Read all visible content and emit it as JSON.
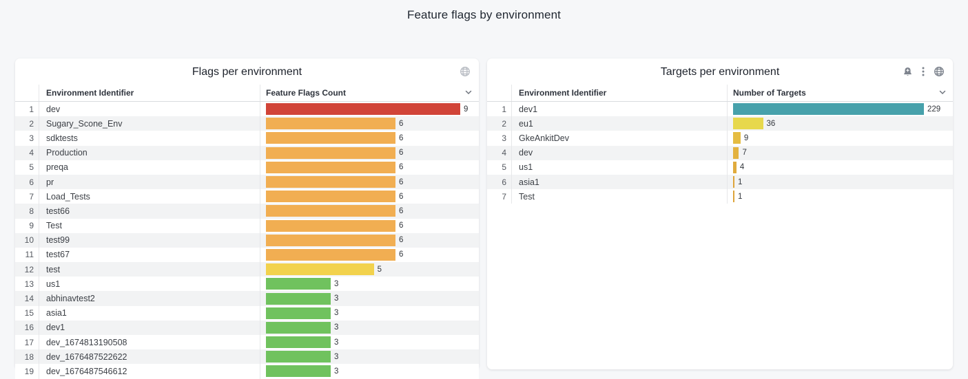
{
  "page": {
    "title": "Feature flags by environment"
  },
  "panels": [
    {
      "title": "Flags per environment",
      "icons": [
        "globe-icon"
      ],
      "columns": {
        "env": "Environment Identifier",
        "value": "Feature Flags Count"
      },
      "max": 9,
      "rows": [
        {
          "index": 1,
          "env": "dev",
          "value": 9,
          "color": "#d14438"
        },
        {
          "index": 2,
          "env": "Sugary_Scone_Env",
          "value": 6,
          "color": "#f1ae52"
        },
        {
          "index": 3,
          "env": "sdktests",
          "value": 6,
          "color": "#f1ae52"
        },
        {
          "index": 4,
          "env": "Production",
          "value": 6,
          "color": "#f1ae52"
        },
        {
          "index": 5,
          "env": "preqa",
          "value": 6,
          "color": "#f1ae52"
        },
        {
          "index": 6,
          "env": "pr",
          "value": 6,
          "color": "#f1ae52"
        },
        {
          "index": 7,
          "env": "Load_Tests",
          "value": 6,
          "color": "#f1ae52"
        },
        {
          "index": 8,
          "env": "test66",
          "value": 6,
          "color": "#f1ae52"
        },
        {
          "index": 9,
          "env": "Test",
          "value": 6,
          "color": "#f1ae52"
        },
        {
          "index": 10,
          "env": "test99",
          "value": 6,
          "color": "#f1ae52"
        },
        {
          "index": 11,
          "env": "test67",
          "value": 6,
          "color": "#f1ae52"
        },
        {
          "index": 12,
          "env": "test",
          "value": 5,
          "color": "#f2d24d"
        },
        {
          "index": 13,
          "env": "us1",
          "value": 3,
          "color": "#70c25e"
        },
        {
          "index": 14,
          "env": "abhinavtest2",
          "value": 3,
          "color": "#70c25e"
        },
        {
          "index": 15,
          "env": "asia1",
          "value": 3,
          "color": "#70c25e"
        },
        {
          "index": 16,
          "env": "dev1",
          "value": 3,
          "color": "#70c25e"
        },
        {
          "index": 17,
          "env": "dev_1674813190508",
          "value": 3,
          "color": "#70c25e"
        },
        {
          "index": 18,
          "env": "dev_1676487522622",
          "value": 3,
          "color": "#70c25e"
        },
        {
          "index": 19,
          "env": "dev_1676487546612",
          "value": 3,
          "color": "#70c25e"
        }
      ]
    },
    {
      "title": "Targets per environment",
      "icons": [
        "bell-plus-icon",
        "kebab-menu-icon",
        "globe-icon"
      ],
      "columns": {
        "env": "Environment Identifier",
        "value": "Number of Targets"
      },
      "max": 229,
      "rows": [
        {
          "index": 1,
          "env": "dev1",
          "value": 229,
          "color": "#47a1ab"
        },
        {
          "index": 2,
          "env": "eu1",
          "value": 36,
          "color": "#e7d84c"
        },
        {
          "index": 3,
          "env": "GkeAnkitDev",
          "value": 9,
          "color": "#e5bc42"
        },
        {
          "index": 4,
          "env": "dev",
          "value": 7,
          "color": "#e3b23f"
        },
        {
          "index": 5,
          "env": "us1",
          "value": 4,
          "color": "#e0ab3d"
        },
        {
          "index": 6,
          "env": "asia1",
          "value": 1,
          "color": "#dda43a"
        },
        {
          "index": 7,
          "env": "Test",
          "value": 1,
          "color": "#dda43a"
        }
      ]
    }
  ],
  "chart_data": [
    {
      "type": "bar",
      "orientation": "horizontal",
      "title": "Flags per environment",
      "categories": [
        "dev",
        "Sugary_Scone_Env",
        "sdktests",
        "Production",
        "preqa",
        "pr",
        "Load_Tests",
        "test66",
        "Test",
        "test99",
        "test67",
        "test",
        "us1",
        "abhinavtest2",
        "asia1",
        "dev1",
        "dev_1674813190508",
        "dev_1676487522622",
        "dev_1676487546612"
      ],
      "values": [
        9,
        6,
        6,
        6,
        6,
        6,
        6,
        6,
        6,
        6,
        6,
        5,
        3,
        3,
        3,
        3,
        3,
        3,
        3
      ],
      "xlabel": "Feature Flags Count",
      "ylabel": "Environment Identifier",
      "xlim": [
        0,
        9
      ],
      "legend": false,
      "grid": false
    },
    {
      "type": "bar",
      "orientation": "horizontal",
      "title": "Targets per environment",
      "categories": [
        "dev1",
        "eu1",
        "GkeAnkitDev",
        "dev",
        "us1",
        "asia1",
        "Test"
      ],
      "values": [
        229,
        36,
        9,
        7,
        4,
        1,
        1
      ],
      "xlabel": "Number of Targets",
      "ylabel": "Environment Identifier",
      "xlim": [
        0,
        229
      ],
      "legend": false,
      "grid": false
    }
  ]
}
